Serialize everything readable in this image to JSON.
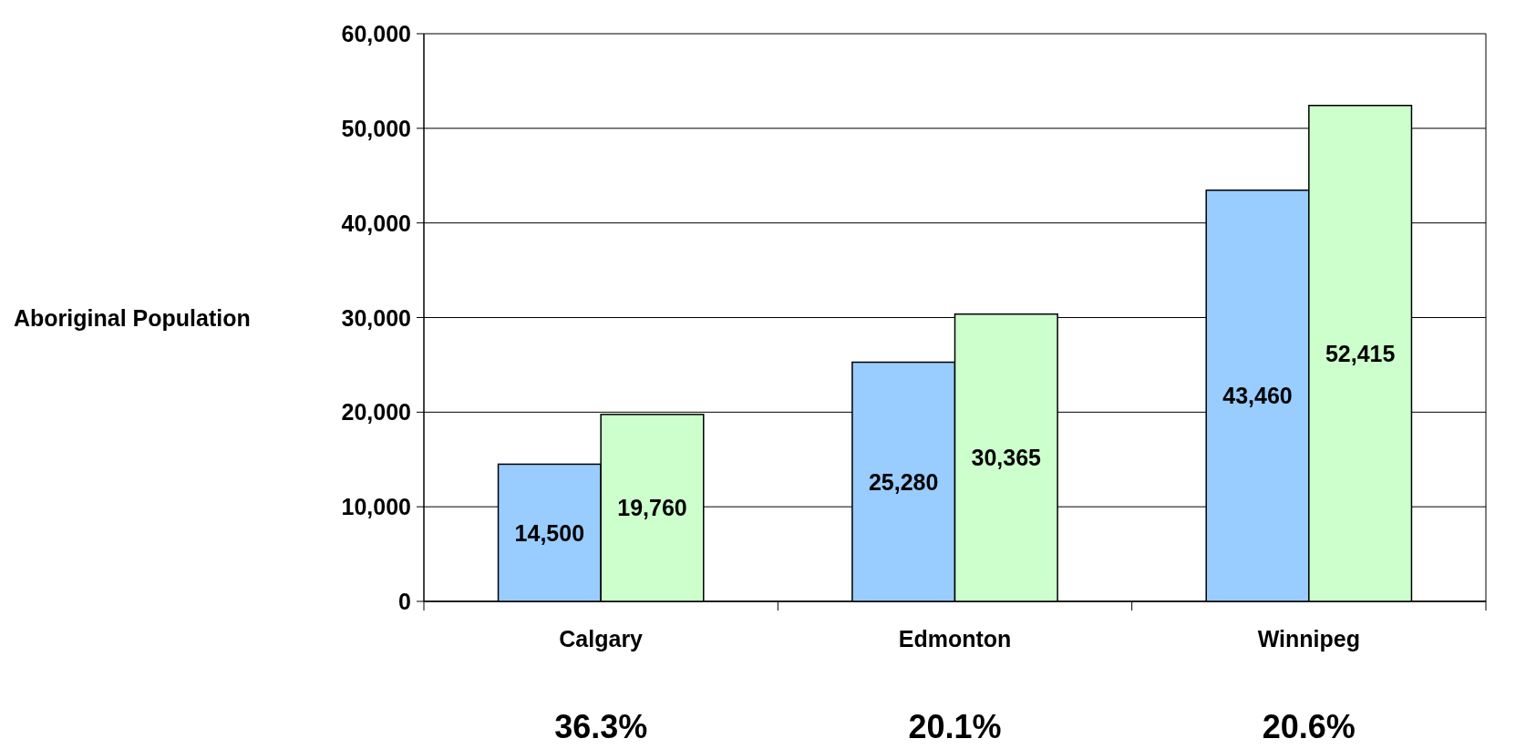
{
  "chart_data": {
    "type": "bar",
    "ylabel": "Aboriginal Population",
    "categories": [
      "Calgary",
      "Edmonton",
      "Winnipeg"
    ],
    "series": [
      {
        "color": "#99ccff",
        "values": [
          14500,
          25280,
          43460
        ],
        "value_labels": [
          "14,500",
          "25,280",
          "43,460"
        ]
      },
      {
        "color": "#ccffcc",
        "values": [
          19760,
          30365,
          52415
        ],
        "value_labels": [
          "19,760",
          "30,365",
          "52,415"
        ]
      }
    ],
    "ylim": [
      0,
      60000
    ],
    "yticks": [
      {
        "value": 0,
        "label": "0"
      },
      {
        "value": 10000,
        "label": "10,000"
      },
      {
        "value": 20000,
        "label": "20,000"
      },
      {
        "value": 30000,
        "label": "30,000"
      },
      {
        "value": 40000,
        "label": "40,000"
      },
      {
        "value": 50000,
        "label": "50,000"
      },
      {
        "value": 60000,
        "label": "60,000"
      }
    ],
    "grid": "y",
    "annotations": [
      "36.3%",
      "20.1%",
      "20.6%"
    ]
  }
}
